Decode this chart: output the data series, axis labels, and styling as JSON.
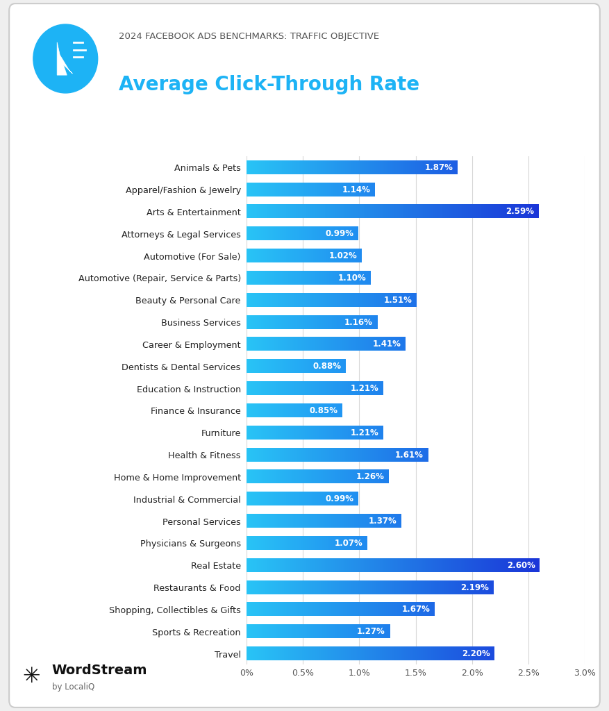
{
  "title_line1": "2024 FACEBOOK ADS BENCHMARKS: TRAFFIC OBJECTIVE",
  "title_line2": "Average Click-Through Rate",
  "categories": [
    "Animals & Pets",
    "Apparel/Fashion & Jewelry",
    "Arts & Entertainment",
    "Attorneys & Legal Services",
    "Automotive (For Sale)",
    "Automotive (Repair, Service & Parts)",
    "Beauty & Personal Care",
    "Business Services",
    "Career & Employment",
    "Dentists & Dental Services",
    "Education & Instruction",
    "Finance & Insurance",
    "Furniture",
    "Health & Fitness",
    "Home & Home Improvement",
    "Industrial & Commercial",
    "Personal Services",
    "Physicians & Surgeons",
    "Real Estate",
    "Restaurants & Food",
    "Shopping, Collectibles & Gifts",
    "Sports & Recreation",
    "Travel"
  ],
  "values": [
    1.87,
    1.14,
    2.59,
    0.99,
    1.02,
    1.1,
    1.51,
    1.16,
    1.41,
    0.88,
    1.21,
    0.85,
    1.21,
    1.61,
    1.26,
    0.99,
    1.37,
    1.07,
    2.6,
    2.19,
    1.67,
    1.27,
    2.2
  ],
  "bar_color_left": "#29c4f6",
  "bar_color_right_low": "#2196f3",
  "bar_color_right_high": "#1a35d8",
  "label_color": "#ffffff",
  "background_color": "#ffffff",
  "title_line1_color": "#555555",
  "title_line2_color": "#1db3f5",
  "x_max": 3.0,
  "x_ticks": [
    0.0,
    0.5,
    1.0,
    1.5,
    2.0,
    2.5,
    3.0
  ],
  "x_tick_labels": [
    "0%",
    "0.5%",
    "1.0%",
    "1.5%",
    "2.0%",
    "2.5%",
    "3.0%"
  ],
  "wordstream_text": "WordStream",
  "localiq_text": "by LocaliQ",
  "grid_color": "#d8d8d8",
  "bar_height": 0.6,
  "fig_bg": "#efefef",
  "card_bg": "#ffffff",
  "icon_color": "#1db3f5"
}
